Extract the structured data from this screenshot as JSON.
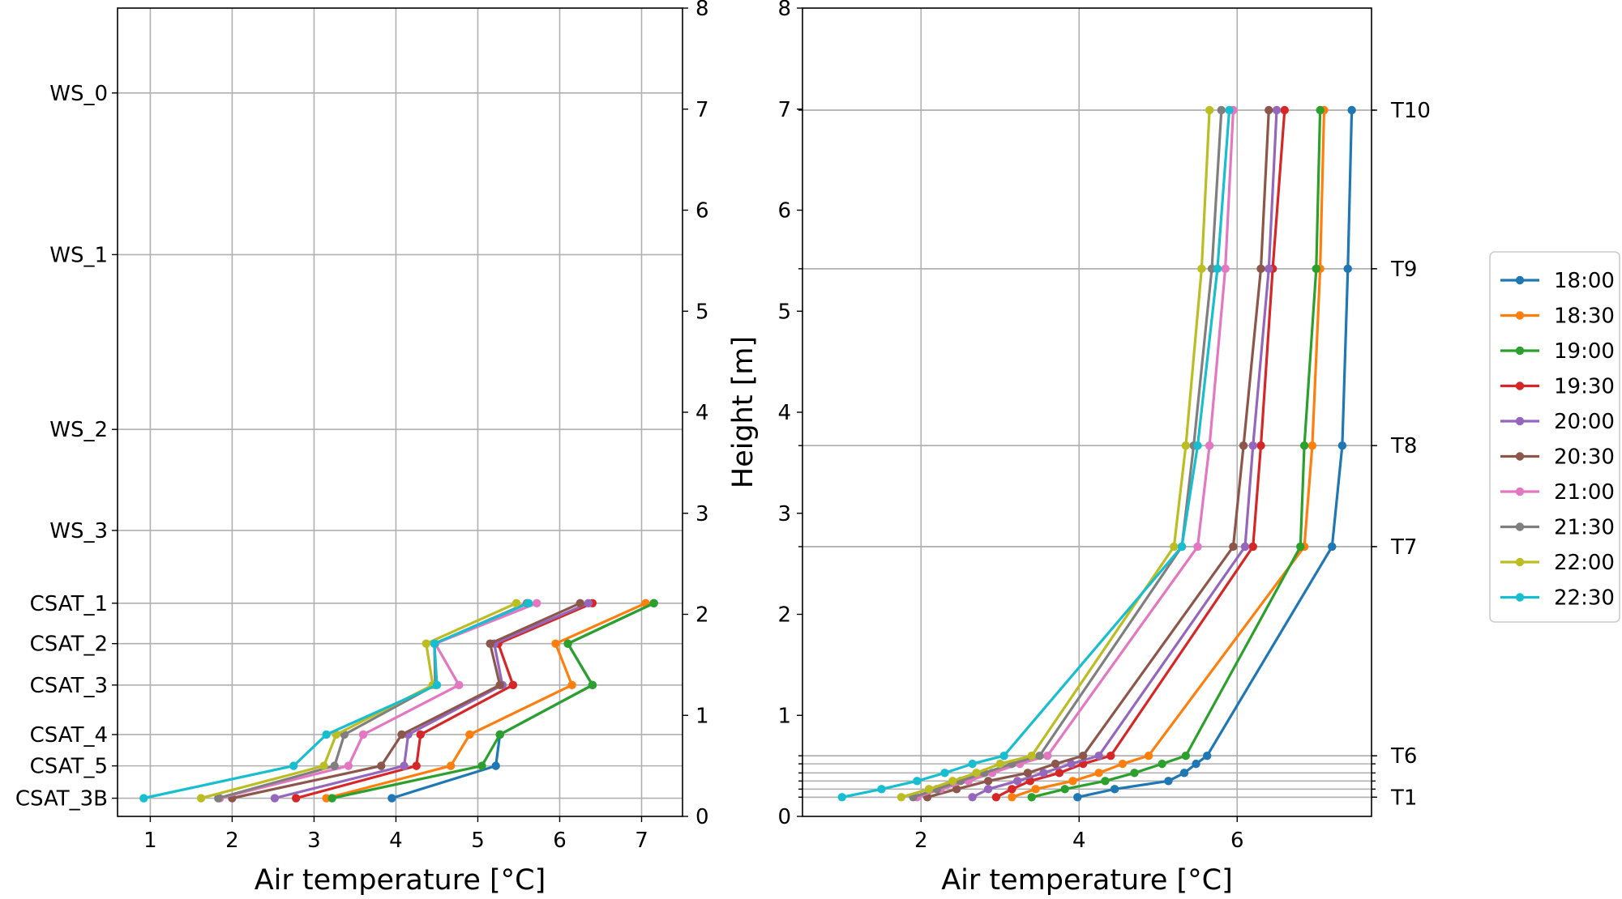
{
  "chart_data": [
    {
      "type": "line",
      "xlabel": "Air temperature [°C]",
      "ylabel": "Height [m]",
      "xlim": [
        0.6,
        7.5
      ],
      "ylim": [
        0,
        8
      ],
      "xticks": [
        1,
        2,
        3,
        4,
        5,
        6,
        7
      ],
      "yticks": [
        0,
        1,
        2,
        3,
        4,
        5,
        6,
        7,
        8
      ],
      "grid": true,
      "sensor_labels": [
        {
          "label": "WS_0",
          "y": 7.16
        },
        {
          "label": "WS_1",
          "y": 5.56
        },
        {
          "label": "WS_2",
          "y": 3.83
        },
        {
          "label": "WS_3",
          "y": 2.83
        },
        {
          "label": "CSAT_1",
          "y": 2.11
        },
        {
          "label": "CSAT_2",
          "y": 1.71
        },
        {
          "label": "CSAT_3",
          "y": 1.3
        },
        {
          "label": "CSAT_4",
          "y": 0.81
        },
        {
          "label": "CSAT_5",
          "y": 0.5
        },
        {
          "label": "CSAT_3B",
          "y": 0.18
        }
      ],
      "heights": [
        2.11,
        1.71,
        1.3,
        0.81,
        0.5,
        0.18
      ],
      "series": [
        {
          "name": "18:00",
          "values": [
            7.15,
            6.1,
            6.4,
            5.27,
            5.22,
            3.95
          ]
        },
        {
          "name": "18:30",
          "values": [
            7.05,
            5.95,
            6.15,
            4.9,
            4.67,
            3.15
          ]
        },
        {
          "name": "19:00",
          "values": [
            7.15,
            6.1,
            6.4,
            5.27,
            5.05,
            3.22
          ]
        },
        {
          "name": "19:30",
          "values": [
            6.4,
            5.25,
            5.43,
            4.3,
            4.25,
            2.78
          ]
        },
        {
          "name": "20:00",
          "values": [
            6.35,
            5.2,
            5.3,
            4.15,
            4.1,
            2.52
          ]
        },
        {
          "name": "20:30",
          "values": [
            6.25,
            5.15,
            5.27,
            4.07,
            3.82,
            2.0
          ]
        },
        {
          "name": "21:00",
          "values": [
            5.72,
            4.48,
            4.77,
            3.6,
            3.42,
            1.85
          ]
        },
        {
          "name": "21:30",
          "values": [
            5.6,
            4.47,
            4.48,
            3.37,
            3.25,
            1.83
          ]
        },
        {
          "name": "22:00",
          "values": [
            5.47,
            4.37,
            4.45,
            3.27,
            3.12,
            1.62
          ]
        },
        {
          "name": "22:30",
          "values": [
            5.62,
            4.47,
            4.5,
            3.15,
            2.75,
            0.92
          ]
        }
      ]
    },
    {
      "type": "line",
      "xlabel": "Air temperature [°C]",
      "ylabel": "",
      "xlim": [
        0.5,
        7.7
      ],
      "ylim": [
        0,
        8
      ],
      "xticks": [
        2,
        4,
        6
      ],
      "yticks": [
        0,
        1,
        2,
        3,
        4,
        5,
        6,
        7,
        8
      ],
      "grid": true,
      "sensor_labels": [
        {
          "label": "T10",
          "y": 6.99
        },
        {
          "label": "T9",
          "y": 5.42
        },
        {
          "label": "T8",
          "y": 3.67
        },
        {
          "label": "T7",
          "y": 2.67
        },
        {
          "label": "T6",
          "y": 0.6
        },
        {
          "label": "T1",
          "y": 0.19
        }
      ],
      "heights": [
        6.99,
        5.42,
        3.67,
        2.67,
        0.6,
        0.52,
        0.43,
        0.35,
        0.27,
        0.19
      ],
      "series": [
        {
          "name": "18:00",
          "values": [
            7.45,
            7.4,
            7.33,
            7.2,
            5.62,
            5.48,
            5.33,
            5.13,
            4.45,
            3.98
          ]
        },
        {
          "name": "18:30",
          "values": [
            7.1,
            7.05,
            6.95,
            6.85,
            4.88,
            4.55,
            4.25,
            3.92,
            3.45,
            3.15
          ]
        },
        {
          "name": "19:00",
          "values": [
            7.05,
            7.0,
            6.85,
            6.8,
            5.35,
            5.05,
            4.7,
            4.33,
            3.82,
            3.4
          ]
        },
        {
          "name": "19:30",
          "values": [
            6.6,
            6.45,
            6.3,
            6.2,
            4.4,
            4.05,
            3.75,
            3.38,
            3.15,
            2.95
          ]
        },
        {
          "name": "20:00",
          "values": [
            6.5,
            6.4,
            6.2,
            6.1,
            4.25,
            3.9,
            3.55,
            3.22,
            2.85,
            2.65
          ]
        },
        {
          "name": "20:30",
          "values": [
            6.4,
            6.3,
            6.08,
            5.95,
            4.05,
            3.7,
            3.35,
            2.85,
            2.45,
            2.08
          ]
        },
        {
          "name": "21:00",
          "values": [
            5.95,
            5.85,
            5.65,
            5.5,
            3.6,
            3.25,
            2.9,
            2.6,
            2.25,
            1.95
          ]
        },
        {
          "name": "21:30",
          "values": [
            5.8,
            5.68,
            5.45,
            5.3,
            3.5,
            3.15,
            2.8,
            2.5,
            2.2,
            1.9
          ]
        },
        {
          "name": "22:00",
          "values": [
            5.65,
            5.55,
            5.35,
            5.2,
            3.4,
            3.0,
            2.7,
            2.4,
            2.1,
            1.75
          ]
        },
        {
          "name": "22:30",
          "values": [
            5.9,
            5.75,
            5.5,
            5.3,
            3.05,
            2.65,
            2.3,
            1.95,
            1.5,
            1.0
          ]
        }
      ]
    }
  ],
  "legend": {
    "placement": "right",
    "entries": [
      "18:00",
      "18:30",
      "19:00",
      "19:30",
      "20:00",
      "20:30",
      "21:00",
      "21:30",
      "22:00",
      "22:30"
    ]
  },
  "colors": [
    "#1f77b4",
    "#ff7f0e",
    "#2ca02c",
    "#d62728",
    "#9467bd",
    "#8c564b",
    "#e377c2",
    "#7f7f7f",
    "#bcbd22",
    "#17becf"
  ]
}
